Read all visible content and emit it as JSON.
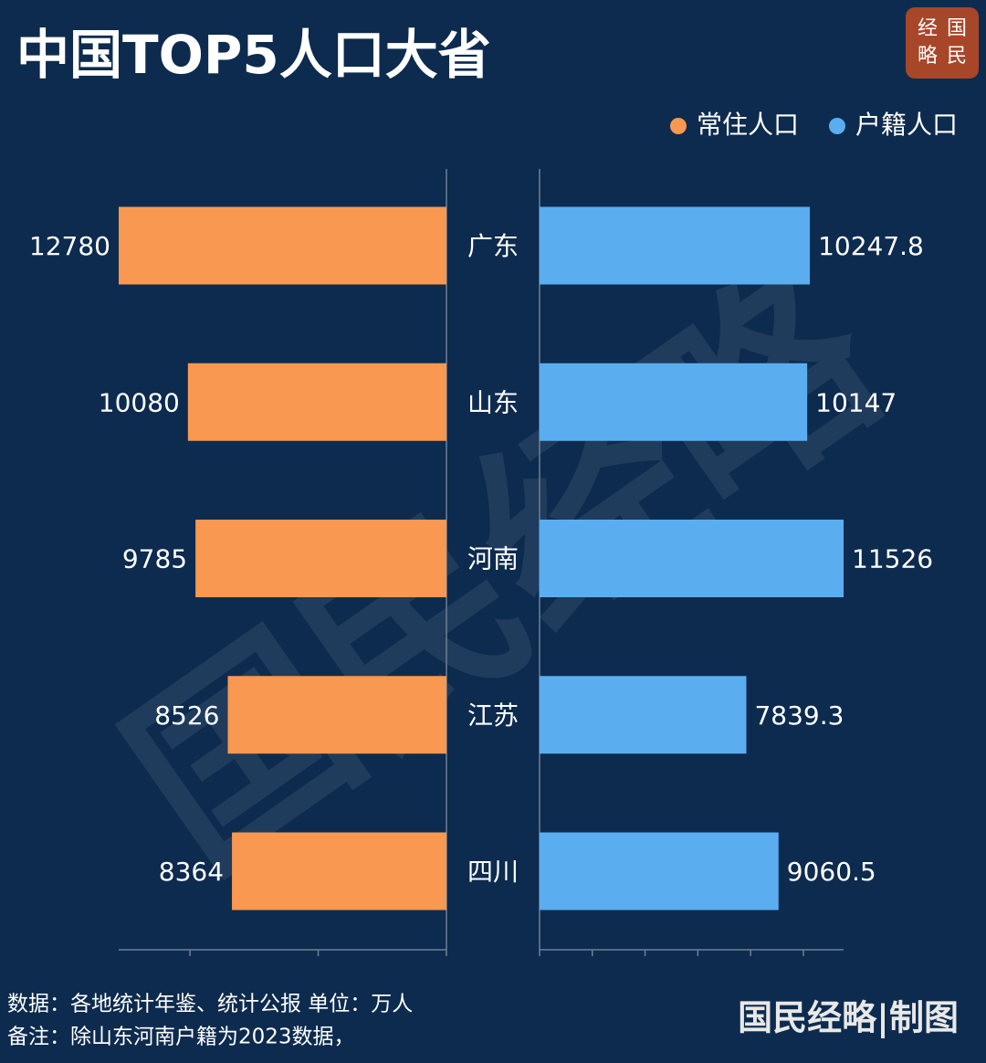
{
  "title": "中国TOP5人口大省",
  "logo": [
    "经",
    "国",
    "略",
    "民"
  ],
  "watermark": "国民经略",
  "chart_data": {
    "type": "butterfly",
    "categories": [
      "广东",
      "山东",
      "河南",
      "江苏",
      "四川"
    ],
    "legend": "top-right",
    "series": [
      {
        "name": "常住人口",
        "color": "#f99850",
        "side": "left",
        "values": [
          12780,
          10080,
          9785,
          8526,
          8364
        ],
        "xlim": [
          0,
          12780
        ],
        "xticks": [
          0,
          5000,
          10000
        ]
      },
      {
        "name": "户籍人口",
        "color": "#5aaef0",
        "side": "right",
        "values": [
          10247.8,
          10147,
          11526,
          7839.3,
          9060.5
        ],
        "xlim": [
          0,
          11526
        ],
        "xticks": [
          0,
          2000,
          4000,
          6000,
          8000,
          10000
        ]
      }
    ]
  },
  "footer": {
    "source": "数据：各地统计年鉴、统计公报 单位：万人",
    "note": "备注：除山东河南户籍为2023数据，",
    "credit": "国民经略|制图"
  }
}
